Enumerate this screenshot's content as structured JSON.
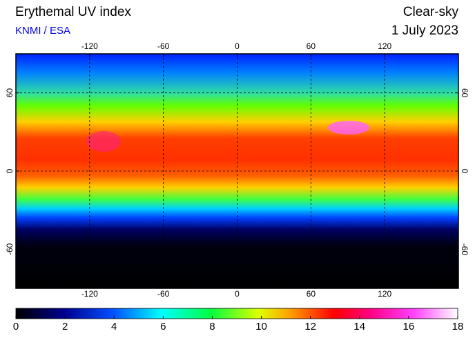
{
  "map": {
    "title": "Erythemal UV index",
    "subtitle": "KNMI / ESA",
    "condition": "Clear-sky",
    "date": "1 July 2023",
    "lonlim": [
      -180,
      180
    ],
    "latlim": [
      -90,
      90
    ],
    "lon_ticks": [
      -120,
      -60,
      0,
      60,
      120
    ],
    "lat_ticks": [
      60,
      0,
      -60
    ],
    "grid": true,
    "colorbar": {
      "lim": [
        0,
        18
      ],
      "ticks": [
        0,
        2,
        4,
        6,
        8,
        10,
        12,
        14,
        16,
        18
      ]
    }
  }
}
